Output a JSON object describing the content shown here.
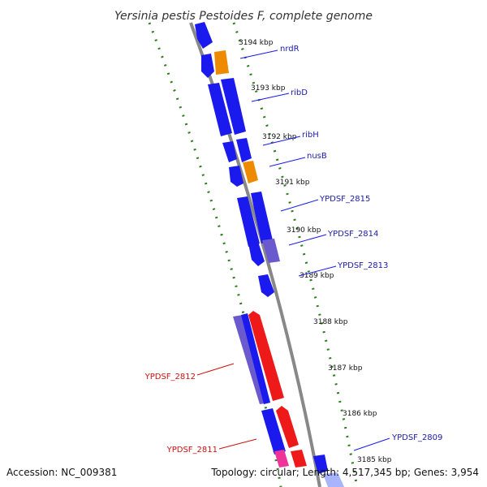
{
  "title": "Yersinia pestis Pestoides F, complete genome",
  "footer": {
    "accession": "Accession: NC_009381",
    "topology": "Topology: circular; Length: 4,517,345 bp; Genes: 3,954"
  },
  "colors": {
    "backbone": "#888888",
    "tick": "#2e7d1e",
    "gene_forward": "#1a1aee",
    "gene_orange": "#ee8a00",
    "gene_reverse": "#ee1a1a",
    "gene_pink": "#ee3399",
    "label_blue": "#1a1aaa",
    "label_red": "#cc1111"
  },
  "kbp_ticks": [
    "3194 kbp",
    "3193 kbp",
    "3192 kbp",
    "3191 kbp",
    "3190 kbp",
    "3189 kbp",
    "3188 kbp",
    "3187 kbp",
    "3186 kbp",
    "3185 kbp"
  ],
  "gene_labels": [
    {
      "name": "nrdR",
      "strand": "forward"
    },
    {
      "name": "ribD",
      "strand": "forward"
    },
    {
      "name": "ribH",
      "strand": "forward"
    },
    {
      "name": "nusB",
      "strand": "forward"
    },
    {
      "name": "YPDSF_2815",
      "strand": "forward"
    },
    {
      "name": "YPDSF_2814",
      "strand": "forward"
    },
    {
      "name": "YPDSF_2813",
      "strand": "forward"
    },
    {
      "name": "YPDSF_2812",
      "strand": "reverse"
    },
    {
      "name": "YPDSF_2811",
      "strand": "reverse"
    },
    {
      "name": "YPDSF_2809",
      "strand": "forward"
    }
  ]
}
